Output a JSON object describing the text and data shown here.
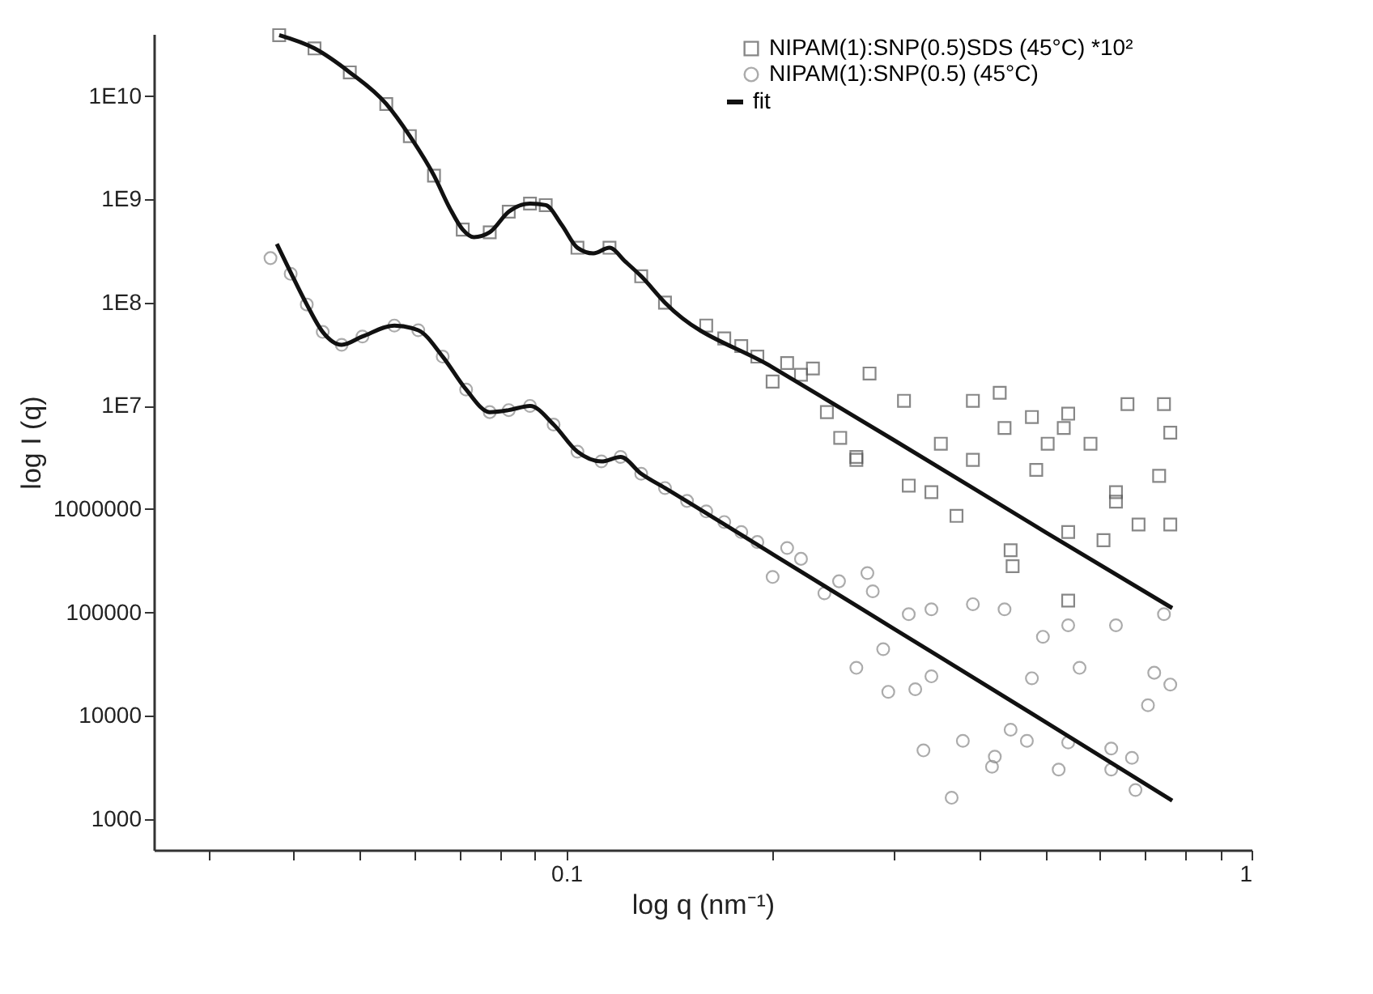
{
  "chart_data": {
    "type": "scatter",
    "xlabel": "log q (nm⁻¹)",
    "ylabel": "log I (q)",
    "log": "xy",
    "grid": false,
    "legend": "top right",
    "xlim": [
      0.025,
      1
    ],
    "ylim": [
      500,
      40000000000
    ],
    "xticks": [
      {
        "value": 0.03,
        "label": null
      },
      {
        "value": 0.04,
        "label": null
      },
      {
        "value": 0.05,
        "label": null
      },
      {
        "value": 0.06,
        "label": null
      },
      {
        "value": 0.07,
        "label": null
      },
      {
        "value": 0.08,
        "label": null
      },
      {
        "value": 0.09,
        "label": null
      },
      0.1,
      {
        "value": 0.2,
        "label": null
      },
      {
        "value": 0.3,
        "label": null
      },
      {
        "value": 0.4,
        "label": null
      },
      {
        "value": 0.5,
        "label": null
      },
      {
        "value": 0.6,
        "label": null
      },
      {
        "value": 0.7,
        "label": null
      },
      {
        "value": 0.8,
        "label": null
      },
      {
        "value": 0.9,
        "label": null
      },
      1
    ],
    "yticks": [
      1000,
      10000,
      100000,
      1000000,
      {
        "value": 10000000,
        "label": "1E7"
      },
      {
        "value": 100000000,
        "label": "1E8"
      },
      {
        "value": 1000000000,
        "label": "1E9"
      },
      {
        "value": 10000000000,
        "label": "1E10"
      }
    ],
    "series": [
      {
        "name": "NIPAM(1):SNP(0.5)SDS (45°C) *10²",
        "marker": "square",
        "color": "#555555",
        "x": [
          0.0381,
          0.0429,
          0.0483,
          0.0546,
          0.0591,
          0.0641,
          0.0706,
          0.0773,
          0.0824,
          0.0885,
          0.0933,
          0.1038,
          0.1156,
          0.1286,
          0.1393,
          0.16,
          0.17,
          0.18,
          0.19,
          0.21,
          0.22,
          0.2,
          0.229,
          0.277,
          0.24,
          0.265,
          0.251,
          0.311,
          0.316,
          0.341,
          0.392,
          0.429,
          0.436,
          0.478,
          0.532,
          0.54,
          0.582,
          0.659,
          0.745,
          0.761,
          0.485,
          0.733,
          0.634,
          0.352,
          0.392,
          0.504,
          0.265,
          0.371,
          0.445,
          0.448,
          0.54,
          0.608,
          0.684,
          0.761,
          0.54,
          0.634
        ],
        "values": [
          39000000000,
          29000000000,
          17000000000,
          8400000000,
          4100000000,
          1700000000,
          510000000,
          480000000,
          760000000,
          910000000,
          880000000,
          340000000,
          340000000,
          180000000,
          100000000,
          60000000,
          45000000,
          38000000,
          30000000,
          26000000,
          20000000,
          17200000,
          23000000,
          20600000,
          8700000,
          3200000,
          4900000,
          11200000,
          1690000,
          1460000,
          11200000,
          13400000,
          6100000,
          7800000,
          6100000,
          8400000,
          4300000,
          10400000,
          10400000,
          5500000,
          2400000,
          2100000,
          1460000,
          4300000,
          3000000,
          4300000,
          3000000,
          860000,
          400000,
          280000,
          130000,
          500000,
          710000,
          710000,
          600000,
          1180000
        ]
      },
      {
        "name": "NIPAM(1):SNP(0.5) (45°C)",
        "marker": "circle",
        "color": "#888888",
        "x": [
          0.037,
          0.0396,
          0.0418,
          0.0441,
          0.047,
          0.0504,
          0.0561,
          0.0608,
          0.066,
          0.0714,
          0.0773,
          0.0824,
          0.0885,
          0.0958,
          0.1038,
          0.1125,
          0.12,
          0.1286,
          0.1393,
          0.15,
          0.16,
          0.17,
          0.18,
          0.19,
          0.22,
          0.25,
          0.28,
          0.2,
          0.21,
          0.238,
          0.265,
          0.29,
          0.295,
          0.323,
          0.341,
          0.332,
          0.365,
          0.379,
          0.392,
          0.418,
          0.422,
          0.436,
          0.445,
          0.47,
          0.478,
          0.523,
          0.54,
          0.54,
          0.561,
          0.624,
          0.624,
          0.634,
          0.669,
          0.677,
          0.721,
          0.761,
          0.745,
          0.706,
          0.496,
          0.275,
          0.316,
          0.341
        ],
        "values": [
          270000000,
          190000000,
          96000000,
          52000000,
          39000000,
          47000000,
          60000000,
          54000000,
          30000000,
          14400000,
          8700000,
          9100000,
          10000000,
          6600000,
          3600000,
          2900000,
          3200000,
          2200000,
          1600000,
          1200000,
          950000,
          750000,
          600000,
          480000,
          330000,
          200000,
          160000,
          220000,
          420000,
          153000,
          29000,
          44000,
          17000,
          18000,
          24000,
          4600,
          1600,
          5700,
          120000,
          3200,
          4000,
          107000,
          7300,
          5700,
          23000,
          3000,
          75000,
          5500,
          29000,
          4800,
          3000,
          75000,
          3900,
          1900,
          26000,
          20000,
          96000,
          12600,
          58000,
          240000,
          96000,
          107000
        ]
      },
      {
        "name": "fit",
        "type": "line",
        "color": "#111111",
        "x": [
          0.0381,
          0.0429,
          0.0483,
          0.0546,
          0.0591,
          0.0641,
          0.0676,
          0.0706,
          0.0733,
          0.0773,
          0.0824,
          0.0885,
          0.0933,
          0.0984,
          0.1038,
          0.1095,
          0.1156,
          0.1219,
          0.1286,
          0.1393,
          0.2,
          0.3,
          0.5,
          0.766
        ],
        "values": [
          39000000000,
          29000000000,
          17000000000,
          8400000000,
          4100000000,
          1700000000,
          820000000,
          510000000,
          430000000,
          480000000,
          760000000,
          910000000,
          880000000,
          570000000,
          340000000,
          300000000,
          340000000,
          250000000,
          180000000,
          100000000,
          23600000,
          4700000,
          600000,
          110000
        ]
      },
      {
        "type": "line",
        "color": "#111111",
        "x": [
          0.0378,
          0.0396,
          0.0418,
          0.0441,
          0.047,
          0.0504,
          0.0561,
          0.0608,
          0.066,
          0.0714,
          0.0773,
          0.0824,
          0.0885,
          0.0958,
          0.1038,
          0.1125,
          0.12,
          0.1286,
          0.1393,
          0.2,
          0.3,
          0.5,
          0.766
        ],
        "values": [
          370000000,
          196000000,
          96000000,
          52000000,
          39000000,
          47000000,
          60000000,
          54000000,
          30000000,
          14400000,
          8700000,
          9100000,
          10000000,
          6600000,
          3600000,
          2900000,
          3200000,
          2200000,
          1600000,
          366000,
          70000,
          8700,
          1500
        ]
      }
    ]
  }
}
